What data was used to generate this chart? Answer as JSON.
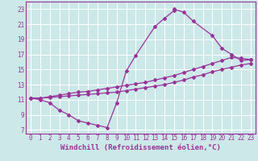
{
  "xlabel": "Windchill (Refroidissement éolien,°C)",
  "background_color": "#cce8e8",
  "line_color": "#993399",
  "grid_color": "#ffffff",
  "xlim": [
    -0.5,
    23.5
  ],
  "ylim": [
    6.5,
    24.0
  ],
  "xticks": [
    0,
    1,
    2,
    3,
    4,
    5,
    6,
    7,
    8,
    9,
    10,
    11,
    12,
    13,
    14,
    15,
    16,
    17,
    18,
    19,
    20,
    21,
    22,
    23
  ],
  "yticks": [
    7,
    9,
    11,
    13,
    15,
    17,
    19,
    21,
    23
  ],
  "curve1_x": [
    0,
    1,
    2,
    3,
    4,
    5,
    6,
    7,
    8,
    9,
    10,
    11,
    13,
    14,
    15,
    15,
    16,
    17,
    19,
    20,
    21,
    22,
    23
  ],
  "curve1_y": [
    11.2,
    11.0,
    10.6,
    9.6,
    9.0,
    8.2,
    7.9,
    7.6,
    7.3,
    10.6,
    14.8,
    16.9,
    20.7,
    21.8,
    22.8,
    23.0,
    22.6,
    21.4,
    19.5,
    17.8,
    17.0,
    16.2,
    16.3
  ],
  "curve2_x": [
    0,
    1,
    2,
    3,
    4,
    5,
    6,
    7,
    8,
    9,
    10,
    11,
    12,
    13,
    14,
    15,
    16,
    17,
    18,
    19,
    20,
    21,
    22,
    23
  ],
  "curve2_y": [
    11.2,
    11.2,
    11.4,
    11.6,
    11.8,
    12.0,
    12.1,
    12.3,
    12.5,
    12.7,
    12.9,
    13.1,
    13.3,
    13.6,
    13.9,
    14.2,
    14.6,
    15.0,
    15.4,
    15.8,
    16.2,
    16.6,
    16.5,
    16.3
  ],
  "curve3_x": [
    0,
    1,
    2,
    3,
    4,
    5,
    6,
    7,
    8,
    9,
    10,
    11,
    12,
    13,
    14,
    15,
    16,
    17,
    18,
    19,
    20,
    21,
    22,
    23
  ],
  "curve3_y": [
    11.2,
    11.2,
    11.3,
    11.4,
    11.5,
    11.6,
    11.7,
    11.8,
    11.9,
    12.0,
    12.2,
    12.4,
    12.6,
    12.8,
    13.0,
    13.3,
    13.6,
    14.0,
    14.3,
    14.7,
    15.0,
    15.3,
    15.6,
    15.8
  ],
  "marker": "D",
  "markersize": 2,
  "linewidth": 0.9,
  "tick_fontsize": 5.5,
  "label_fontsize": 6.5
}
